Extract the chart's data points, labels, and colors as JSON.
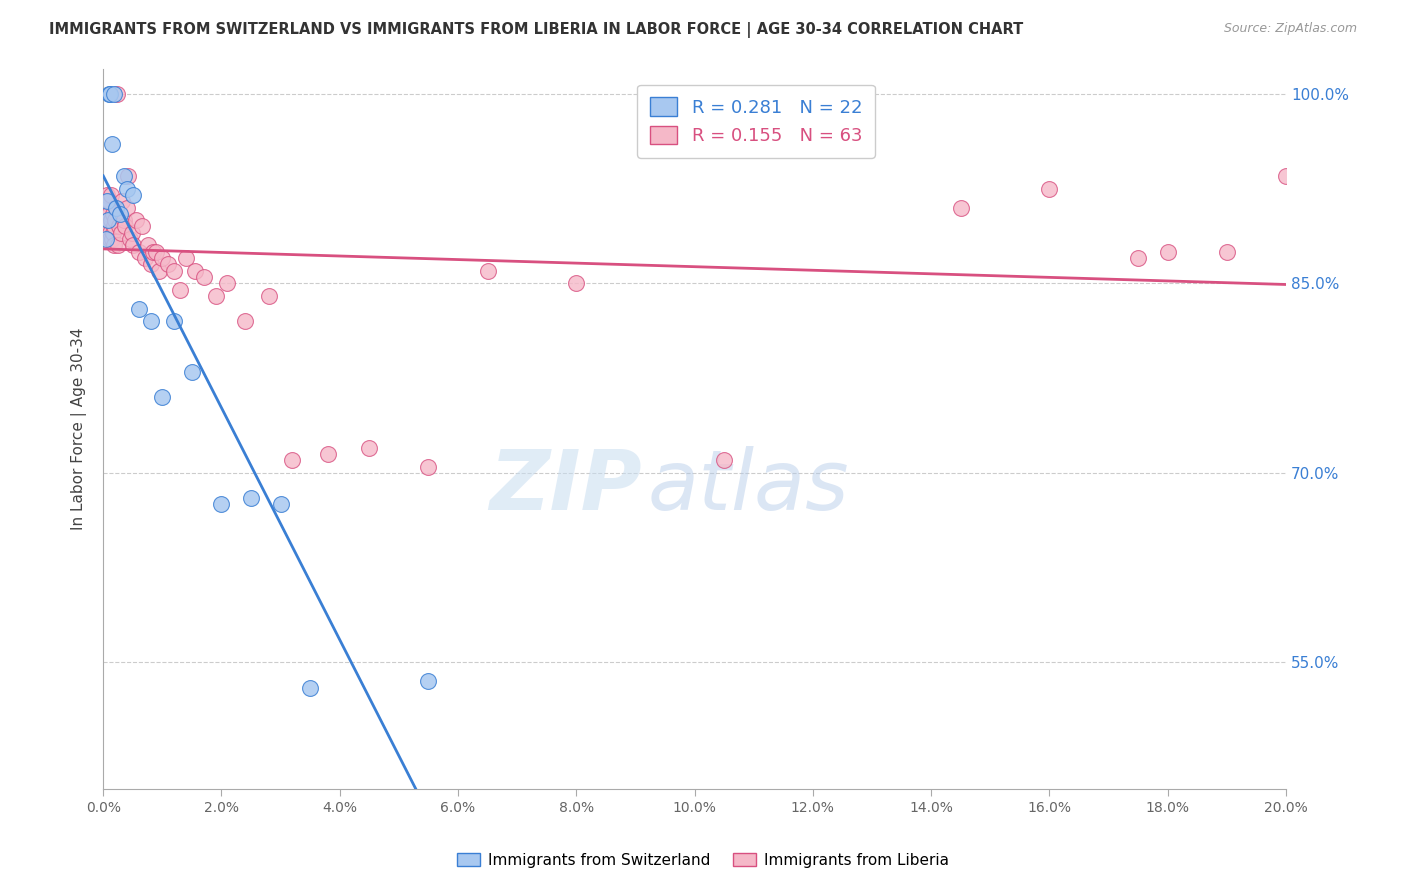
{
  "title": "IMMIGRANTS FROM SWITZERLAND VS IMMIGRANTS FROM LIBERIA IN LABOR FORCE | AGE 30-34 CORRELATION CHART",
  "source": "Source: ZipAtlas.com",
  "ylabel_label": "In Labor Force | Age 30-34",
  "xlim": [
    0.0,
    20.0
  ],
  "ylim": [
    45.0,
    102.0
  ],
  "yticks": [
    55.0,
    70.0,
    85.0,
    100.0
  ],
  "xticks": [
    0.0,
    2.0,
    4.0,
    6.0,
    8.0,
    10.0,
    12.0,
    14.0,
    16.0,
    18.0,
    20.0
  ],
  "R_swiss": 0.281,
  "N_swiss": 22,
  "R_liberia": 0.155,
  "N_liberia": 63,
  "color_swiss": "#a8c8f0",
  "color_liberia": "#f5b8c8",
  "color_swiss_line": "#3a7fd4",
  "color_liberia_line": "#d85080",
  "watermark_zip": "ZIP",
  "watermark_atlas": "atlas",
  "legend_label_swiss": "R = 0.281   N = 22",
  "legend_label_liberia": "R = 0.155   N = 63",
  "bottom_legend_swiss": "Immigrants from Switzerland",
  "bottom_legend_liberia": "Immigrants from Liberia",
  "swiss_x": [
    0.05,
    0.07,
    0.08,
    0.1,
    0.12,
    0.15,
    0.18,
    0.22,
    0.28,
    0.35,
    0.4,
    0.5,
    0.6,
    0.8,
    1.0,
    1.2,
    1.5,
    2.0,
    2.5,
    3.0,
    3.5,
    5.5
  ],
  "swiss_y": [
    88.5,
    91.5,
    90.0,
    100.0,
    100.0,
    96.0,
    100.0,
    91.0,
    90.5,
    93.5,
    92.5,
    92.0,
    83.0,
    82.0,
    76.0,
    82.0,
    78.0,
    67.5,
    68.0,
    67.5,
    53.0,
    53.5
  ],
  "liberia_x": [
    0.03,
    0.05,
    0.06,
    0.07,
    0.08,
    0.09,
    0.1,
    0.11,
    0.12,
    0.13,
    0.14,
    0.15,
    0.16,
    0.17,
    0.18,
    0.19,
    0.2,
    0.22,
    0.23,
    0.25,
    0.27,
    0.3,
    0.32,
    0.35,
    0.37,
    0.4,
    0.42,
    0.45,
    0.48,
    0.5,
    0.55,
    0.6,
    0.65,
    0.7,
    0.75,
    0.8,
    0.85,
    0.9,
    0.95,
    1.0,
    1.1,
    1.2,
    1.3,
    1.4,
    1.55,
    1.7,
    1.9,
    2.1,
    2.4,
    2.8,
    3.2,
    3.8,
    4.5,
    5.5,
    6.5,
    8.0,
    10.5,
    14.5,
    16.0,
    17.5,
    18.0,
    19.0,
    20.0
  ],
  "liberia_y": [
    90.5,
    89.5,
    91.0,
    92.0,
    90.0,
    90.5,
    91.5,
    89.0,
    88.5,
    90.0,
    92.0,
    88.5,
    89.0,
    90.5,
    89.5,
    88.0,
    90.0,
    91.0,
    100.0,
    88.0,
    89.5,
    89.0,
    91.5,
    90.0,
    89.5,
    91.0,
    93.5,
    88.5,
    89.0,
    88.0,
    90.0,
    87.5,
    89.5,
    87.0,
    88.0,
    86.5,
    87.5,
    87.5,
    86.0,
    87.0,
    86.5,
    86.0,
    84.5,
    87.0,
    86.0,
    85.5,
    84.0,
    85.0,
    82.0,
    84.0,
    71.0,
    71.5,
    72.0,
    70.5,
    86.0,
    85.0,
    71.0,
    91.0,
    92.5,
    87.0,
    87.5,
    87.5,
    93.5
  ]
}
